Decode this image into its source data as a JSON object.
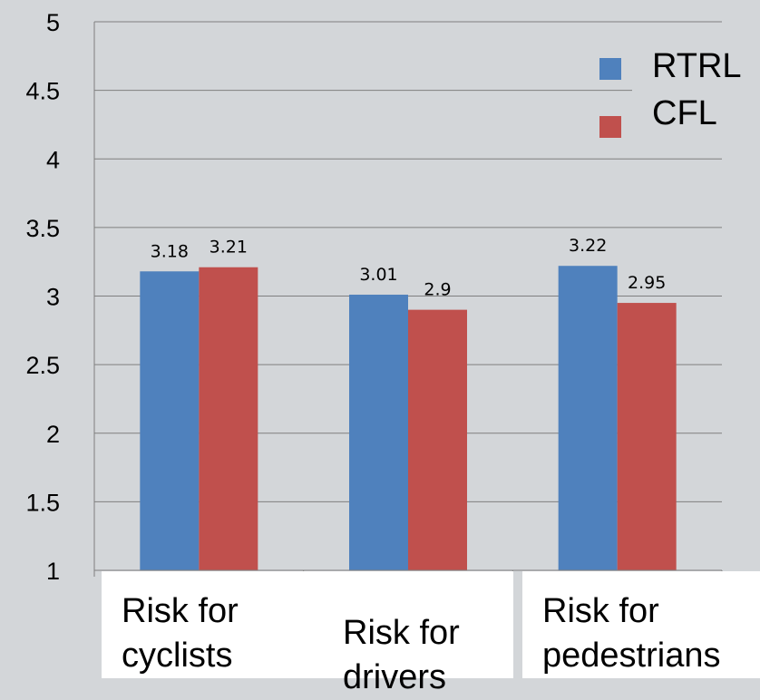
{
  "chart_data": {
    "type": "bar",
    "title": "",
    "xlabel": "",
    "ylabel": "",
    "categories": [
      "Risk for\ncyclists",
      "Risk for\ndrivers",
      "Risk for\npedestrians"
    ],
    "series": [
      {
        "name": "RTRL",
        "color": "#4f81bd",
        "values": [
          3.18,
          3.01,
          3.22
        ]
      },
      {
        "name": "CFL",
        "color": "#c0504d",
        "values": [
          3.21,
          2.9,
          2.95
        ]
      }
    ],
    "data_labels": [
      [
        "3.18",
        "3.21"
      ],
      [
        "3.01",
        "2.9"
      ],
      [
        "3.22",
        "2.95"
      ]
    ],
    "ylim": [
      1,
      5
    ],
    "yticks": [
      "1",
      "1.5",
      "2",
      "2.5",
      "3",
      "3.5",
      "4",
      "4.5",
      "5"
    ],
    "grid": true,
    "legend_position": "top-right"
  }
}
